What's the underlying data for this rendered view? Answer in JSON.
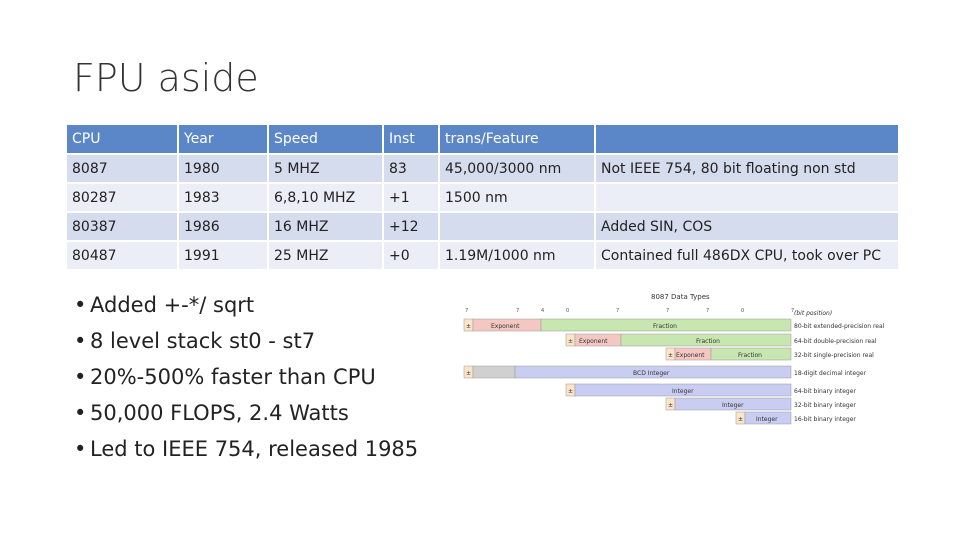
{
  "title": "FPU aside",
  "table": {
    "headers": [
      "CPU",
      "Year",
      "Speed",
      "Inst",
      "trans/Feature",
      ""
    ],
    "rows": [
      [
        "8087",
        "1980",
        "5 MHZ",
        "83",
        "45,000/3000 nm",
        "Not IEEE 754, 80 bit floating non std"
      ],
      [
        "80287",
        "1983",
        "6,8,10 MHZ",
        "+1",
        "1500 nm",
        ""
      ],
      [
        "80387",
        "1986",
        "16 MHZ",
        "+12",
        "",
        "Added SIN, COS"
      ],
      [
        "80487",
        "1991",
        "25 MHZ",
        "+0",
        "1.19M/1000 nm",
        "Contained full 486DX CPU, took over PC"
      ]
    ]
  },
  "bullets": [
    "Added +-*/ sqrt",
    "8 level stack st0 - st7",
    "20%-500% faster than CPU",
    "50,000 FLOPS, 2.4 Watts",
    "Led to IEEE 754, released 1985"
  ],
  "diagram": {
    "title": "8087 Data Types",
    "col_labels": [
      "7\n0",
      "7\n1",
      "4",
      "0",
      "7\n0",
      "7\n1",
      "7\n2",
      "0",
      "7\n0",
      "(bit position)"
    ],
    "rows": [
      {
        "sign": "±",
        "field1": "Exponent",
        "field2": "Fraction",
        "label": "80-bit extended-precision real"
      },
      {
        "sign": "±",
        "field1": "Exponent",
        "field2": "Fraction",
        "label": "64-bit double-precision real"
      },
      {
        "sign": "±",
        "field1": "Exponent",
        "field2": "Fraction",
        "label": "32-bit single-precision real"
      },
      {
        "sign": "±",
        "field1": "",
        "field2": "BCD Integer",
        "label": "18-digit decimal integer"
      },
      {
        "sign": "±",
        "field1": "",
        "field2": "Integer",
        "label": "64-bit binary integer"
      },
      {
        "sign": "±",
        "field1": "",
        "field2": "Integer",
        "label": "32-bit binary integer"
      },
      {
        "sign": "±",
        "field1": "",
        "field2": "Integer",
        "label": "16-bit binary integer"
      }
    ],
    "colors": {
      "exponent": "#f4c7c3",
      "fraction": "#c8e6b0",
      "bcd": "#c9cdf2",
      "integer": "#c9cdf2",
      "gray": "#d0d0d0",
      "sign": "#fbe4c8"
    }
  }
}
